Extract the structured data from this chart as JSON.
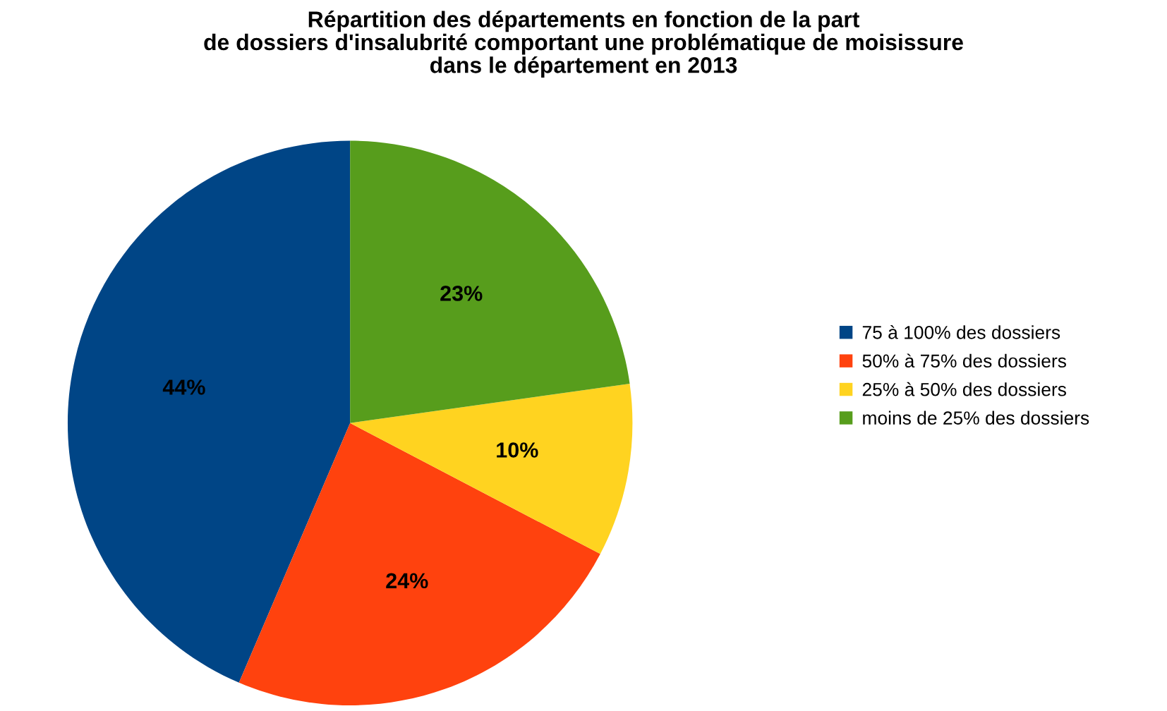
{
  "chart_data": {
    "type": "pie",
    "title": "Répartition des départements en fonction de la part\nde dossiers d'insalubrité comportant une problématique de moisissure\ndans le département en 2013",
    "categories": [
      "75 à 100% des dossiers",
      "50% à 75% des dossiers",
      "25% à 50% des dossiers",
      "moins de 25% des dossiers"
    ],
    "values": [
      44,
      24,
      10,
      23
    ],
    "colors": [
      "#004586",
      "#ff420e",
      "#ffd320",
      "#579d1c"
    ],
    "value_labels": [
      "44%",
      "24%",
      "10%",
      "23%"
    ],
    "legend": "right"
  }
}
